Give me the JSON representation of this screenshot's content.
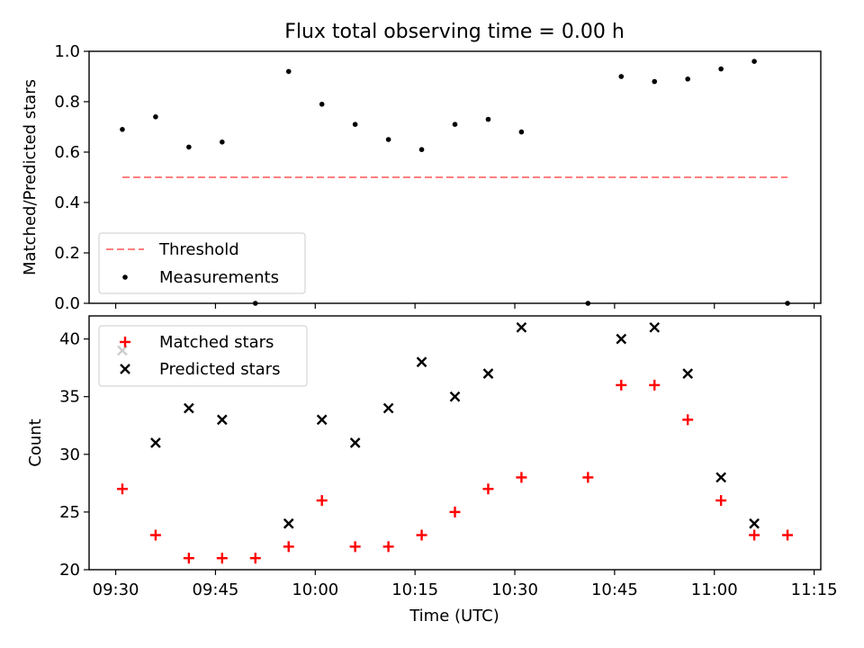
{
  "title": "Flux total observing time = 0.00 h",
  "chart_data": [
    {
      "type": "scatter",
      "ylabel": "Matched/Predicted stars",
      "ylim": [
        0,
        1
      ],
      "yticks": [
        "0.0",
        "0.2",
        "0.4",
        "0.6",
        "0.8",
        "1.0"
      ],
      "grid": false,
      "legend_position": "lower-left",
      "threshold": {
        "name": "Threshold",
        "value": 0.5,
        "x_start": "09:31",
        "x_end": "11:11",
        "color": "#ff7f7f",
        "style": "dashed"
      },
      "series": [
        {
          "name": "Measurements",
          "color": "#000000",
          "marker": "dot",
          "x": [
            "09:31",
            "09:36",
            "09:41",
            "09:46",
            "09:51",
            "09:56",
            "10:01",
            "10:06",
            "10:11",
            "10:16",
            "10:21",
            "10:26",
            "10:31",
            "10:41",
            "10:46",
            "10:51",
            "10:56",
            "11:01",
            "11:06",
            "11:11"
          ],
          "y": [
            0.69,
            0.74,
            0.62,
            0.64,
            0.0,
            0.92,
            0.79,
            0.71,
            0.65,
            0.61,
            0.71,
            0.73,
            0.68,
            0.0,
            0.9,
            0.88,
            0.89,
            0.93,
            0.96,
            0.0
          ]
        }
      ]
    },
    {
      "type": "scatter",
      "xlabel": "Time (UTC)",
      "ylabel": "Count",
      "xlim": [
        "09:26",
        "11:16"
      ],
      "ylim": [
        20,
        42
      ],
      "xticks": [
        "09:30",
        "09:45",
        "10:00",
        "10:15",
        "10:30",
        "10:45",
        "11:00",
        "11:15"
      ],
      "yticks": [
        "20",
        "25",
        "30",
        "35",
        "40"
      ],
      "grid": false,
      "legend_position": "upper-left",
      "series": [
        {
          "name": "Matched stars",
          "color": "#ff0000",
          "marker": "plus",
          "x": [
            "09:31",
            "09:36",
            "09:41",
            "09:46",
            "09:51",
            "09:56",
            "10:01",
            "10:06",
            "10:11",
            "10:16",
            "10:21",
            "10:26",
            "10:31",
            "10:41",
            "10:46",
            "10:51",
            "10:56",
            "11:01",
            "11:06",
            "11:11"
          ],
          "y": [
            27,
            23,
            21,
            21,
            21,
            22,
            26,
            22,
            22,
            23,
            25,
            27,
            28,
            28,
            36,
            36,
            33,
            26,
            23,
            23
          ]
        },
        {
          "name": "Predicted stars",
          "color": "#000000",
          "marker": "x",
          "x": [
            "09:31",
            "09:36",
            "09:41",
            "09:46",
            "09:56",
            "10:01",
            "10:06",
            "10:11",
            "10:16",
            "10:21",
            "10:26",
            "10:31",
            "10:46",
            "10:51",
            "10:56",
            "11:01",
            "11:06"
          ],
          "y": [
            39,
            31,
            34,
            33,
            24,
            33,
            31,
            34,
            38,
            35,
            37,
            41,
            40,
            41,
            37,
            28,
            24
          ]
        }
      ]
    }
  ]
}
